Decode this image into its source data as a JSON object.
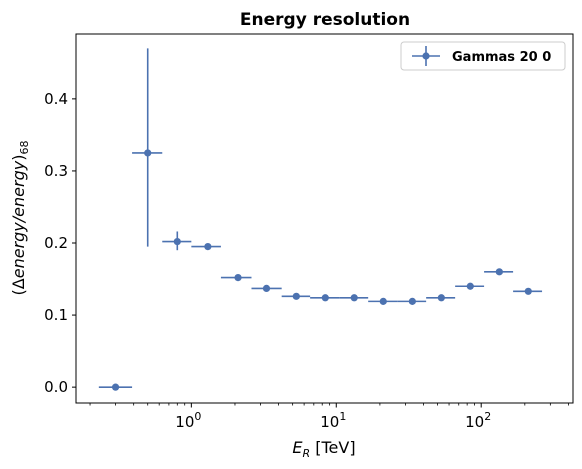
{
  "chart_data": {
    "type": "scatter",
    "title": "Energy resolution",
    "xlabel_main": "E",
    "xlabel_sub": "R",
    "xlabel_unit": " [TeV]",
    "ylabel_open": "(",
    "ylabel_delta": "Δ",
    "ylabel_italic": "energy/energy",
    "ylabel_close": ")",
    "ylabel_sub": "68",
    "xscale": "log",
    "xlim": [
      0.16,
      430
    ],
    "ylim": [
      -0.022,
      0.49
    ],
    "grid": false,
    "legend_position": "top-right",
    "x_ticks": [
      {
        "value": 1,
        "base": "10",
        "exp": "0"
      },
      {
        "value": 10,
        "base": "10",
        "exp": "1"
      },
      {
        "value": 100,
        "base": "10",
        "exp": "2"
      }
    ],
    "y_ticks": [
      {
        "value": 0.0,
        "label": "0.0"
      },
      {
        "value": 0.1,
        "label": "0.1"
      },
      {
        "value": 0.2,
        "label": "0.2"
      },
      {
        "value": 0.3,
        "label": "0.3"
      },
      {
        "value": 0.4,
        "label": "0.4"
      }
    ],
    "color": "#4c72b0",
    "series": [
      {
        "name": "Gammas 20 0",
        "points": [
          {
            "x": 0.3,
            "y": 0.0,
            "xlo": 0.23,
            "xhi": 0.39,
            "ylo": 0.0,
            "yhi": 0.0
          },
          {
            "x": 0.5,
            "y": 0.325,
            "xlo": 0.39,
            "xhi": 0.63,
            "ylo": 0.195,
            "yhi": 0.47
          },
          {
            "x": 0.8,
            "y": 0.202,
            "xlo": 0.63,
            "xhi": 1.0,
            "ylo": 0.19,
            "yhi": 0.216
          },
          {
            "x": 1.3,
            "y": 0.195,
            "xlo": 1.0,
            "xhi": 1.6,
            "ylo": 0.192,
            "yhi": 0.198
          },
          {
            "x": 2.1,
            "y": 0.152,
            "xlo": 1.6,
            "xhi": 2.6,
            "ylo": 0.15,
            "yhi": 0.154
          },
          {
            "x": 3.3,
            "y": 0.137,
            "xlo": 2.6,
            "xhi": 4.2,
            "ylo": 0.135,
            "yhi": 0.139
          },
          {
            "x": 5.3,
            "y": 0.126,
            "xlo": 4.2,
            "xhi": 6.6,
            "ylo": 0.124,
            "yhi": 0.128
          },
          {
            "x": 8.4,
            "y": 0.124,
            "xlo": 6.6,
            "xhi": 10.5,
            "ylo": 0.122,
            "yhi": 0.126
          },
          {
            "x": 13.3,
            "y": 0.124,
            "xlo": 10.5,
            "xhi": 16.6,
            "ylo": 0.122,
            "yhi": 0.126
          },
          {
            "x": 21.1,
            "y": 0.119,
            "xlo": 16.6,
            "xhi": 26.3,
            "ylo": 0.117,
            "yhi": 0.121
          },
          {
            "x": 33.5,
            "y": 0.119,
            "xlo": 26.3,
            "xhi": 41.7,
            "ylo": 0.117,
            "yhi": 0.121
          },
          {
            "x": 53.1,
            "y": 0.124,
            "xlo": 41.7,
            "xhi": 66.1,
            "ylo": 0.122,
            "yhi": 0.126
          },
          {
            "x": 84.1,
            "y": 0.14,
            "xlo": 66.1,
            "xhi": 104.7,
            "ylo": 0.138,
            "yhi": 0.142
          },
          {
            "x": 133.4,
            "y": 0.16,
            "xlo": 104.7,
            "xhi": 166.0,
            "ylo": 0.158,
            "yhi": 0.162
          },
          {
            "x": 211.3,
            "y": 0.133,
            "xlo": 166.0,
            "xhi": 263.0,
            "ylo": 0.131,
            "yhi": 0.135
          }
        ]
      }
    ]
  }
}
